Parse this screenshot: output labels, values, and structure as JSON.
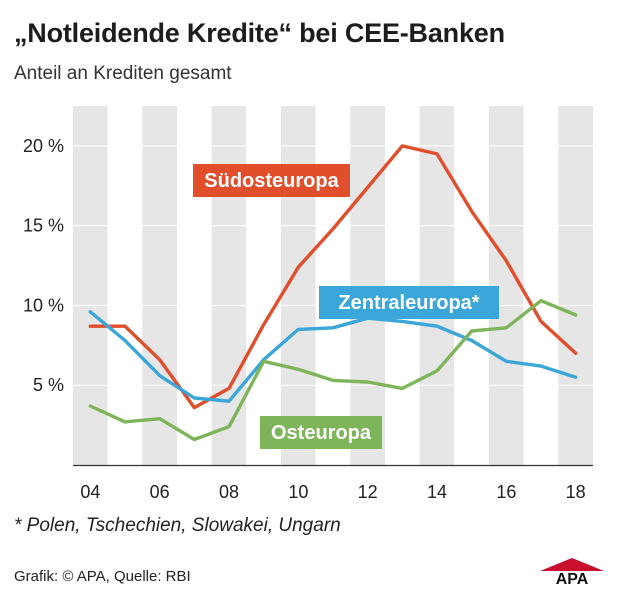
{
  "header": {
    "title": "„Notleidende Kredite“ bei CEE-Banken",
    "subtitle": "Anteil an Krediten gesamt"
  },
  "footnote": "* Polen, Tschechien, Slowakei, Ungarn",
  "credit": "Grafik: © APA, Quelle: RBI",
  "logo": {
    "text": "APA",
    "color": "#c8102e"
  },
  "chart_data": {
    "type": "line",
    "title": "„Notleidende Kredite“ bei CEE-Banken",
    "subtitle": "Anteil an Krediten gesamt",
    "x": [
      2004,
      2005,
      2006,
      2007,
      2008,
      2009,
      2010,
      2011,
      2012,
      2013,
      2014,
      2015,
      2016,
      2017,
      2018
    ],
    "xticks": [
      2004,
      2006,
      2008,
      2010,
      2012,
      2014,
      2016,
      2018
    ],
    "xtick_labels": [
      "04",
      "06",
      "08",
      "10",
      "12",
      "14",
      "16",
      "18"
    ],
    "yticks": [
      5,
      10,
      15,
      20
    ],
    "ytick_labels": [
      "5 %",
      "10 %",
      "15 %",
      "20 %"
    ],
    "xlim": [
      2003.5,
      2018.5
    ],
    "ylim": [
      0,
      22.5
    ],
    "grid": "alternating vertical year bands",
    "legend": "inline labels",
    "series": [
      {
        "name": "Südosteuropa",
        "color": "#e04e2b",
        "values": [
          8.7,
          8.7,
          6.6,
          3.6,
          4.8,
          8.8,
          12.4,
          14.8,
          17.4,
          20.0,
          19.5,
          15.9,
          12.8,
          9.0,
          7.0
        ]
      },
      {
        "name": "Zentraleuropa*",
        "color": "#3aa6d9",
        "values": [
          9.6,
          7.8,
          5.6,
          4.2,
          4.0,
          6.6,
          8.5,
          8.6,
          9.2,
          9.0,
          8.7,
          7.8,
          6.5,
          6.2,
          5.5
        ]
      },
      {
        "name": "Osteuropa",
        "color": "#7fb55a",
        "values": [
          3.7,
          2.7,
          2.9,
          1.6,
          2.4,
          6.5,
          6.0,
          5.3,
          5.2,
          4.8,
          5.9,
          8.4,
          8.6,
          10.3,
          9.4
        ]
      }
    ]
  }
}
